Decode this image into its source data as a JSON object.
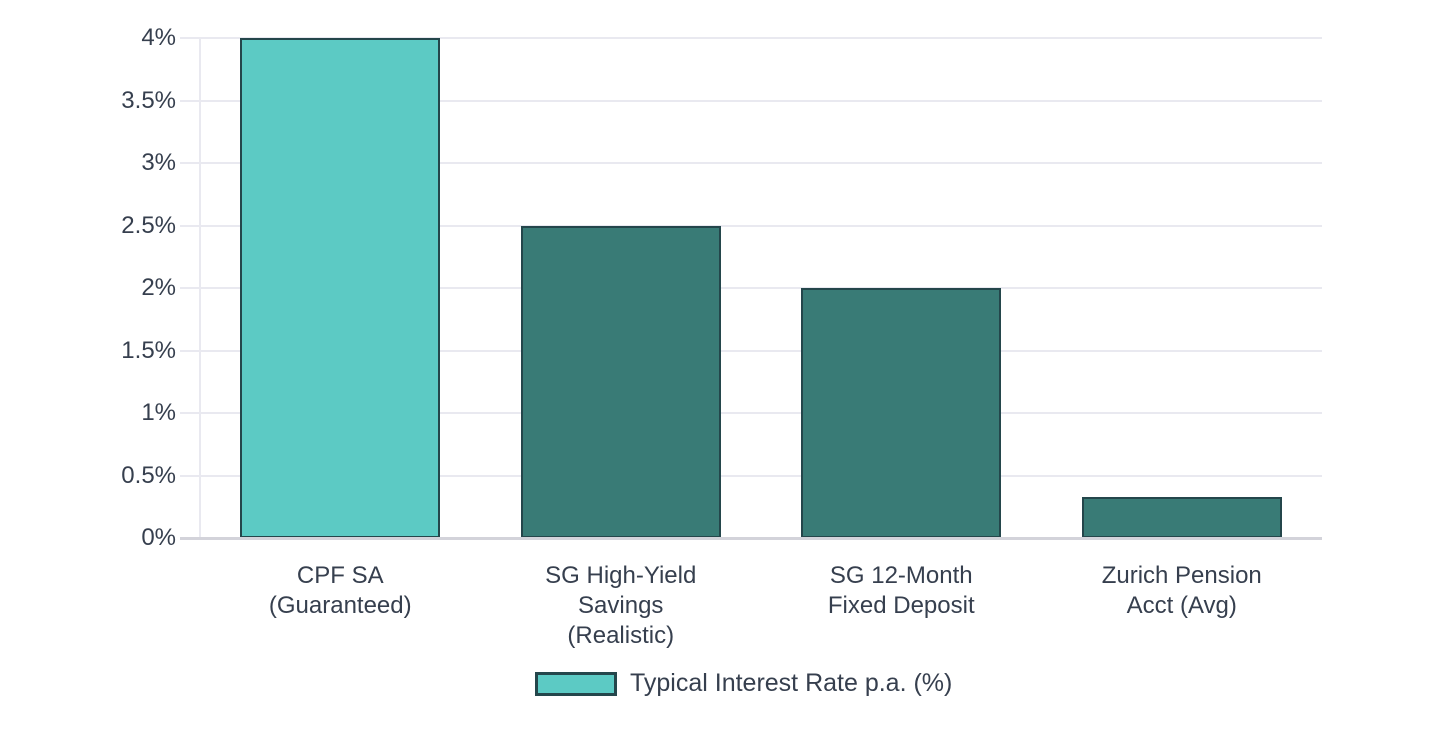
{
  "chart_data": {
    "type": "bar",
    "title": "",
    "xlabel": "",
    "ylabel": "",
    "categories": [
      "CPF SA\n(Guaranteed)",
      "SG High-Yield\nSavings\n(Realistic)",
      "SG 12-Month\nFixed Deposit",
      "Zurich Pension\nAcct (Avg)"
    ],
    "series": [
      {
        "name": "Typical Interest Rate p.a. (%)",
        "values": [
          4,
          2.5,
          2,
          0.33
        ],
        "bar_colors": [
          "#5ccac4",
          "#397b76",
          "#397b76",
          "#397b76"
        ],
        "bar_border_color": "#24464b"
      }
    ],
    "legend": [
      "Typical Interest Rate p.a. (%)"
    ],
    "legend_position": "bottom",
    "ylim": [
      0,
      4
    ],
    "yticks": [
      [
        0,
        "0%"
      ],
      [
        0.5,
        "0.5%"
      ],
      [
        1,
        "1%"
      ],
      [
        1.5,
        "1.5%"
      ],
      [
        2,
        "2%"
      ],
      [
        2.5,
        "2.5%"
      ],
      [
        3,
        "3%"
      ],
      [
        3.5,
        "3.5%"
      ],
      [
        4,
        "4%"
      ]
    ],
    "grid": true,
    "value_format": "percent"
  }
}
